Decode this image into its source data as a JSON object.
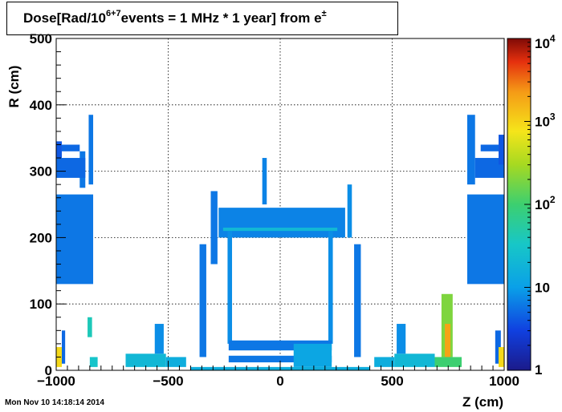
{
  "chart_data": {
    "type": "heatmap",
    "title": {
      "prefix": "Dose[Rad/10",
      "exponent": "6+7",
      "middle": " events = 1 MHz * 1 year] from e",
      "superscript": "±"
    },
    "xlabel": "Z (cm)",
    "ylabel": "R (cm)",
    "xlim": [
      -1000,
      1000
    ],
    "ylim": [
      0,
      500
    ],
    "x_ticks": [
      {
        "value": -1000,
        "label": "−1000"
      },
      {
        "value": -500,
        "label": "−500"
      },
      {
        "value": 0,
        "label": "0"
      },
      {
        "value": 500,
        "label": "500"
      },
      {
        "value": 1000,
        "label": "1000"
      }
    ],
    "y_ticks": [
      {
        "value": 0,
        "label": "0"
      },
      {
        "value": 100,
        "label": "100"
      },
      {
        "value": 200,
        "label": "200"
      },
      {
        "value": 300,
        "label": "300"
      },
      {
        "value": 400,
        "label": "400"
      },
      {
        "value": 500,
        "label": "500"
      }
    ],
    "grid": true,
    "colorbar": {
      "scale": "log",
      "range": [
        1,
        10000
      ],
      "labels": [
        {
          "value": 1,
          "base": "1",
          "exp": ""
        },
        {
          "value": 10,
          "base": "10",
          "exp": ""
        },
        {
          "value": 100,
          "base": "10",
          "exp": "2"
        },
        {
          "value": 1000,
          "base": "10",
          "exp": "3"
        },
        {
          "value": 10000,
          "base": "10",
          "exp": "4"
        }
      ]
    },
    "regions": [
      {
        "z": [
          -1000,
          -975
        ],
        "r": [
          310,
          345
        ],
        "dose": 4
      },
      {
        "z": [
          -975,
          -895
        ],
        "r": [
          330,
          340
        ],
        "dose": 5
      },
      {
        "z": [
          -895,
          -870
        ],
        "r": [
          275,
          330
        ],
        "dose": 6
      },
      {
        "z": [
          -855,
          -835
        ],
        "r": [
          280,
          385
        ],
        "dose": 6
      },
      {
        "z": [
          -1000,
          -870
        ],
        "r": [
          290,
          320
        ],
        "dose": 5
      },
      {
        "z": [
          -1000,
          -835
        ],
        "r": [
          130,
          265
        ],
        "dose": 6
      },
      {
        "z": [
          -975,
          -960
        ],
        "r": [
          10,
          60
        ],
        "dose": 5
      },
      {
        "z": [
          -1000,
          -975
        ],
        "r": [
          5,
          35
        ],
        "dose": 900
      },
      {
        "z": [
          -860,
          -840
        ],
        "r": [
          50,
          80
        ],
        "dose": 40
      },
      {
        "z": [
          -850,
          -815
        ],
        "r": [
          5,
          20
        ],
        "dose": 30
      },
      {
        "z": [
          -690,
          -510
        ],
        "r": [
          5,
          25
        ],
        "dose": 20
      },
      {
        "z": [
          -510,
          -420
        ],
        "r": [
          5,
          20
        ],
        "dose": 15
      },
      {
        "z": [
          -560,
          -520
        ],
        "r": [
          25,
          70
        ],
        "dose": 8
      },
      {
        "z": [
          -310,
          -280
        ],
        "r": [
          160,
          270
        ],
        "dose": 6
      },
      {
        "z": [
          -275,
          290
        ],
        "r": [
          200,
          245
        ],
        "dose": 7
      },
      {
        "z": [
          -255,
          255
        ],
        "r": [
          210,
          215
        ],
        "dose": 20
      },
      {
        "z": [
          -235,
          -215
        ],
        "r": [
          40,
          210
        ],
        "dose": 8
      },
      {
        "z": [
          215,
          235
        ],
        "r": [
          40,
          210
        ],
        "dose": 8
      },
      {
        "z": [
          -360,
          -330
        ],
        "r": [
          20,
          190
        ],
        "dose": 6
      },
      {
        "z": [
          330,
          360
        ],
        "r": [
          20,
          190
        ],
        "dose": 6
      },
      {
        "z": [
          -230,
          230
        ],
        "r": [
          30,
          45
        ],
        "dose": 6
      },
      {
        "z": [
          -230,
          230
        ],
        "r": [
          12,
          22
        ],
        "dose": 6
      },
      {
        "z": [
          60,
          230
        ],
        "r": [
          5,
          40
        ],
        "dose": 12
      },
      {
        "z": [
          -400,
          400
        ],
        "r": [
          0,
          5
        ],
        "dose": 15
      },
      {
        "z": [
          -80,
          -60
        ],
        "r": [
          250,
          320
        ],
        "dose": 7
      },
      {
        "z": [
          300,
          320
        ],
        "r": [
          200,
          280
        ],
        "dose": 8
      },
      {
        "z": [
          420,
          510
        ],
        "r": [
          5,
          20
        ],
        "dose": 15
      },
      {
        "z": [
          510,
          690
        ],
        "r": [
          5,
          25
        ],
        "dose": 20
      },
      {
        "z": [
          520,
          560
        ],
        "r": [
          25,
          70
        ],
        "dose": 8
      },
      {
        "z": [
          720,
          770
        ],
        "r": [
          20,
          115
        ],
        "dose": 200
      },
      {
        "z": [
          735,
          760
        ],
        "r": [
          20,
          70
        ],
        "dose": 2000
      },
      {
        "z": [
          690,
          810
        ],
        "r": [
          5,
          20
        ],
        "dose": 100
      },
      {
        "z": [
          835,
          1000
        ],
        "r": [
          130,
          265
        ],
        "dose": 6
      },
      {
        "z": [
          835,
          870
        ],
        "r": [
          280,
          385
        ],
        "dose": 6
      },
      {
        "z": [
          870,
          1000
        ],
        "r": [
          290,
          320
        ],
        "dose": 5
      },
      {
        "z": [
          895,
          975
        ],
        "r": [
          330,
          340
        ],
        "dose": 5
      },
      {
        "z": [
          975,
          1000
        ],
        "r": [
          310,
          355
        ],
        "dose": 4
      },
      {
        "z": [
          960,
          985
        ],
        "r": [
          10,
          60
        ],
        "dose": 5
      },
      {
        "z": [
          975,
          1000
        ],
        "r": [
          5,
          35
        ],
        "dose": 900
      }
    ]
  },
  "timestamp": "Mon Nov 10 14:18:14 2014"
}
